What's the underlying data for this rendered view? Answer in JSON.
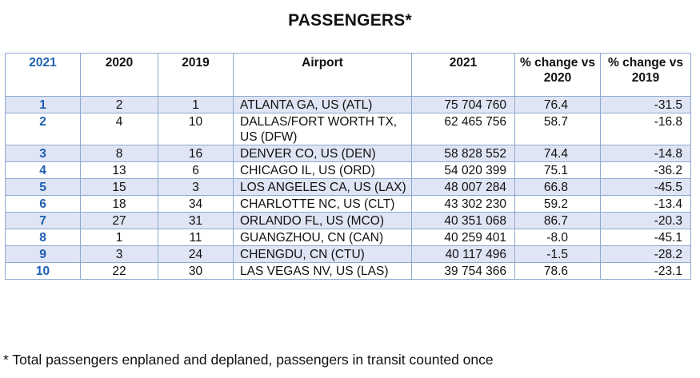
{
  "title": "PASSENGERS*",
  "columns": [
    "2021",
    "2020",
    "2019",
    "Airport",
    "2021",
    "% change vs 2020",
    "% change vs 2019"
  ],
  "rows": [
    {
      "r2021": "1",
      "r2020": "2",
      "r2019": "1",
      "airport": "ATLANTA GA, US (ATL)",
      "passengers": "75 704 760",
      "chg2020": "76.4",
      "chg2019": "-31.5"
    },
    {
      "r2021": "2",
      "r2020": "4",
      "r2019": "10",
      "airport": "DALLAS/FORT WORTH TX, US (DFW)",
      "passengers": "62 465 756",
      "chg2020": "58.7",
      "chg2019": "-16.8"
    },
    {
      "r2021": "3",
      "r2020": "8",
      "r2019": "16",
      "airport": "DENVER CO, US (DEN)",
      "passengers": "58 828 552",
      "chg2020": "74.4",
      "chg2019": "-14.8"
    },
    {
      "r2021": "4",
      "r2020": "13",
      "r2019": "6",
      "airport": "CHICAGO IL, US (ORD)",
      "passengers": "54 020 399",
      "chg2020": "75.1",
      "chg2019": "-36.2"
    },
    {
      "r2021": "5",
      "r2020": "15",
      "r2019": "3",
      "airport": "LOS ANGELES CA, US (LAX)",
      "passengers": "48 007 284",
      "chg2020": "66.8",
      "chg2019": "-45.5"
    },
    {
      "r2021": "6",
      "r2020": "18",
      "r2019": "34",
      "airport": "CHARLOTTE NC, US (CLT)",
      "passengers": "43 302 230",
      "chg2020": "59.2",
      "chg2019": "-13.4"
    },
    {
      "r2021": "7",
      "r2020": "27",
      "r2019": "31",
      "airport": "ORLANDO FL, US (MCO)",
      "passengers": "40 351 068",
      "chg2020": "86.7",
      "chg2019": "-20.3"
    },
    {
      "r2021": "8",
      "r2020": "1",
      "r2019": "11",
      "airport": "GUANGZHOU, CN (CAN)",
      "passengers": "40 259 401",
      "chg2020": "-8.0",
      "chg2019": "-45.1"
    },
    {
      "r2021": "9",
      "r2020": "3",
      "r2019": "24",
      "airport": "CHENGDU, CN (CTU)",
      "passengers": "40 117 496",
      "chg2020": "-1.5",
      "chg2019": "-28.2"
    },
    {
      "r2021": "10",
      "r2020": "22",
      "r2019": "30",
      "airport": "LAS VEGAS NV, US (LAS)",
      "passengers": "39 754 366",
      "chg2020": "78.6",
      "chg2019": "-23.1"
    }
  ],
  "footnote": "* Total passengers enplaned and deplaned, passengers in transit counted once"
}
